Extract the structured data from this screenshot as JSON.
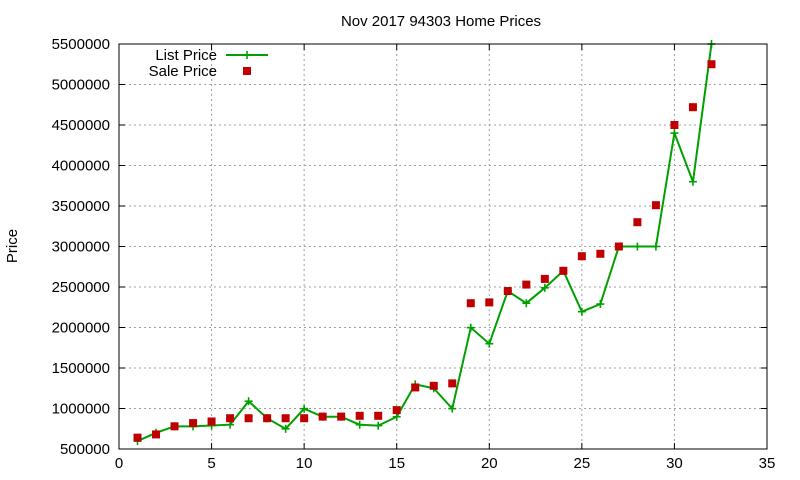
{
  "chart_data": {
    "type": "line",
    "title": "Nov 2017 94303 Home Prices",
    "xlabel": "",
    "ylabel": "Price",
    "xlim": [
      0,
      35
    ],
    "ylim": [
      500000,
      5500000
    ],
    "xticks": [
      0,
      5,
      10,
      15,
      20,
      25,
      30,
      35
    ],
    "yticks": [
      500000,
      1000000,
      1500000,
      2000000,
      2500000,
      3000000,
      3500000,
      4000000,
      4500000,
      5000000,
      5500000
    ],
    "grid": true,
    "legend_position": "top-left",
    "series": [
      {
        "name": "List Price",
        "style": "line-plus",
        "color": "#00a000",
        "x": [
          1,
          2,
          3,
          4,
          5,
          6,
          7,
          8,
          9,
          10,
          11,
          12,
          13,
          14,
          15,
          16,
          17,
          18,
          19,
          20,
          21,
          22,
          23,
          24,
          25,
          26,
          27,
          28,
          29,
          30,
          31,
          32
        ],
        "values": [
          598000,
          700000,
          780000,
          780000,
          790000,
          800000,
          1090000,
          880000,
          749000,
          998000,
          898000,
          898000,
          800000,
          788000,
          898000,
          1298000,
          1250000,
          998000,
          1998000,
          1800000,
          2450000,
          2300000,
          2490000,
          2700000,
          2195000,
          2290000,
          3000000,
          3000000,
          3000000,
          4400000,
          3800000,
          5500000
        ]
      },
      {
        "name": "Sale Price",
        "style": "square",
        "color": "#c00000",
        "x": [
          1,
          2,
          3,
          4,
          5,
          6,
          7,
          8,
          9,
          10,
          11,
          12,
          13,
          14,
          15,
          16,
          17,
          18,
          19,
          20,
          21,
          22,
          23,
          24,
          25,
          26,
          27,
          28,
          29,
          30,
          31,
          32
        ],
        "values": [
          640000,
          680000,
          780000,
          820000,
          840000,
          880000,
          880000,
          880000,
          880000,
          880000,
          900000,
          900000,
          910000,
          910000,
          980000,
          1260000,
          1280000,
          1310000,
          2300000,
          2310000,
          2450000,
          2530000,
          2600000,
          2700000,
          2880000,
          2910000,
          3000000,
          3300000,
          3510000,
          4500000,
          4720000,
          5250000
        ]
      }
    ]
  }
}
